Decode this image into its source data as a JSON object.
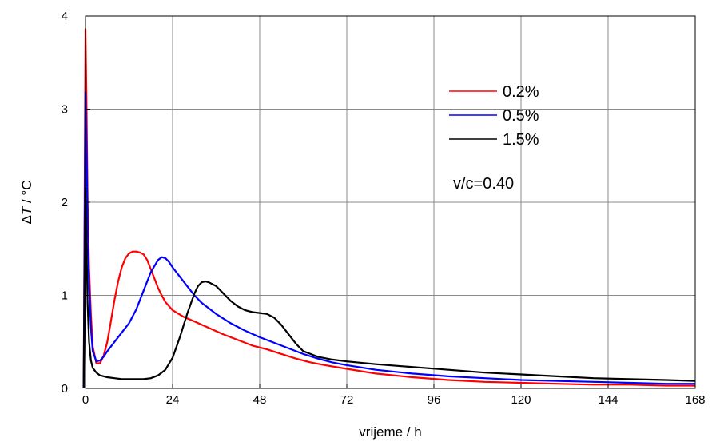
{
  "chart_data": {
    "type": "line",
    "xlabel": "vrijeme / h",
    "ylabel_delta": "Δ",
    "ylabel_var": "T",
    "ylabel_unit": " / °C",
    "xlim": [
      0,
      168
    ],
    "ylim": [
      0,
      4
    ],
    "x_ticks": [
      0,
      24,
      48,
      72,
      96,
      120,
      144,
      168
    ],
    "y_ticks": [
      0,
      1,
      2,
      3,
      4
    ],
    "grid": true,
    "legend_position": "top-right",
    "annotation": "v/c=0.40",
    "series": [
      {
        "name": "0.2%",
        "color": "#ff0000",
        "x": [
          -0.5,
          0,
          0.3,
          0.6,
          1,
          1.5,
          2,
          3,
          4,
          5,
          6,
          7,
          8,
          9,
          10,
          11,
          12,
          13,
          14,
          15,
          16,
          17,
          18,
          19,
          20,
          21,
          22,
          24,
          27,
          30,
          34,
          38,
          42,
          46,
          50,
          54,
          58,
          62,
          66,
          72,
          80,
          90,
          100,
          110,
          120,
          130,
          140,
          150,
          160,
          168
        ],
        "y": [
          0,
          3.86,
          3.0,
          2.0,
          1.3,
          0.8,
          0.45,
          0.27,
          0.27,
          0.35,
          0.5,
          0.72,
          0.95,
          1.15,
          1.3,
          1.4,
          1.45,
          1.47,
          1.47,
          1.46,
          1.44,
          1.38,
          1.28,
          1.18,
          1.08,
          1.0,
          0.93,
          0.84,
          0.77,
          0.72,
          0.65,
          0.58,
          0.52,
          0.46,
          0.42,
          0.37,
          0.32,
          0.28,
          0.25,
          0.21,
          0.16,
          0.12,
          0.09,
          0.07,
          0.06,
          0.05,
          0.04,
          0.04,
          0.03,
          0.03
        ]
      },
      {
        "name": "0.5%",
        "color": "#0000ff",
        "x": [
          -0.5,
          0,
          0.3,
          0.6,
          1,
          1.5,
          2,
          3,
          4,
          5,
          6,
          8,
          10,
          12,
          14,
          16,
          18,
          20,
          21,
          22,
          23,
          24,
          26,
          28,
          30,
          32,
          34,
          36,
          40,
          44,
          48,
          52,
          56,
          60,
          64,
          68,
          72,
          80,
          90,
          100,
          110,
          120,
          130,
          140,
          150,
          160,
          168
        ],
        "y": [
          0,
          3.18,
          2.5,
          1.8,
          1.1,
          0.65,
          0.4,
          0.29,
          0.3,
          0.34,
          0.4,
          0.5,
          0.6,
          0.7,
          0.85,
          1.05,
          1.25,
          1.38,
          1.41,
          1.4,
          1.36,
          1.3,
          1.2,
          1.1,
          1.0,
          0.92,
          0.86,
          0.8,
          0.7,
          0.62,
          0.55,
          0.49,
          0.43,
          0.37,
          0.32,
          0.28,
          0.25,
          0.2,
          0.16,
          0.13,
          0.11,
          0.09,
          0.08,
          0.07,
          0.06,
          0.05,
          0.05
        ]
      },
      {
        "name": "1.5%",
        "color": "#000000",
        "x": [
          -0.5,
          0,
          0.3,
          0.6,
          1,
          1.5,
          2,
          3,
          4,
          6,
          8,
          10,
          12,
          14,
          16,
          18,
          20,
          22,
          24,
          26,
          28,
          30,
          31,
          32,
          33,
          34,
          36,
          38,
          40,
          42,
          44,
          46,
          48,
          50,
          52,
          54,
          56,
          58,
          60,
          64,
          68,
          72,
          80,
          90,
          100,
          110,
          120,
          130,
          140,
          150,
          160,
          168
        ],
        "y": [
          0,
          2.15,
          1.5,
          0.9,
          0.5,
          0.3,
          0.22,
          0.17,
          0.14,
          0.12,
          0.11,
          0.1,
          0.1,
          0.1,
          0.1,
          0.11,
          0.14,
          0.2,
          0.33,
          0.55,
          0.8,
          1.02,
          1.1,
          1.14,
          1.15,
          1.14,
          1.1,
          1.02,
          0.94,
          0.88,
          0.84,
          0.82,
          0.81,
          0.8,
          0.76,
          0.68,
          0.58,
          0.48,
          0.4,
          0.34,
          0.31,
          0.29,
          0.26,
          0.23,
          0.2,
          0.17,
          0.15,
          0.13,
          0.11,
          0.1,
          0.09,
          0.08
        ]
      }
    ]
  }
}
